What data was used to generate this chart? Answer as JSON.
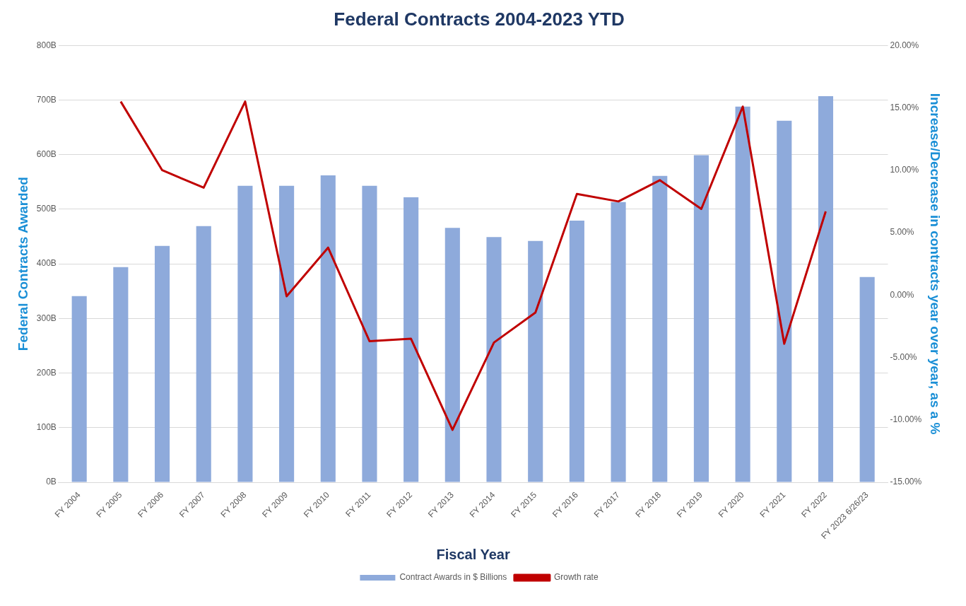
{
  "chart_data": {
    "type": "bar",
    "title": "Federal Contracts 2004-2023 YTD",
    "xlabel": "Fiscal Year",
    "ylabel": "Federal Contracts Awarded",
    "y2label": "Increase/Decrease in contracts year over year, as a %",
    "categories": [
      "FY 2004",
      "FY 2005",
      "FY 2006",
      "FY 2007",
      "FY 2008",
      "FY 2009",
      "FY 2010",
      "FY 2011",
      "FY 2012",
      "FY 2013",
      "FY 2014",
      "FY 2015",
      "FY 2016",
      "FY 2017",
      "FY 2018",
      "FY 2019",
      "FY 2020",
      "FY 2021",
      "FY 2022",
      "FY 2023 6/26/23"
    ],
    "series": [
      {
        "name": "Contract Awards in $ Billions",
        "color": "#8eaadb",
        "values": [
          341,
          394,
          433,
          469,
          543,
          543,
          562,
          543,
          522,
          466,
          449,
          442,
          479,
          513,
          561,
          599,
          688,
          662,
          707,
          376
        ]
      },
      {
        "name": "Growth rate",
        "type": "line",
        "axis": "y2",
        "color": "#c00000",
        "marker": "none",
        "values": [
          null,
          15.5,
          10.0,
          8.6,
          15.5,
          -0.1,
          3.8,
          -3.7,
          -3.5,
          -10.8,
          -3.8,
          -1.4,
          8.1,
          7.5,
          9.2,
          6.9,
          15.1,
          -3.9,
          6.7,
          null
        ]
      }
    ],
    "ylim": [
      0,
      800
    ],
    "yticks": [
      {
        "value": 0,
        "label": "0B"
      },
      {
        "value": 100,
        "label": "100B"
      },
      {
        "value": 200,
        "label": "200B"
      },
      {
        "value": 300,
        "label": "300B"
      },
      {
        "value": 400,
        "label": "400B"
      },
      {
        "value": 500,
        "label": "500B"
      },
      {
        "value": 600,
        "label": "600B"
      },
      {
        "value": 700,
        "label": "700B"
      },
      {
        "value": 800,
        "label": "800B"
      }
    ],
    "y2lim": [
      -15,
      20
    ],
    "y2ticks": [
      {
        "value": -15,
        "label": "-15.00%"
      },
      {
        "value": -10,
        "label": "-10.00%"
      },
      {
        "value": -5,
        "label": "-5.00%"
      },
      {
        "value": 0,
        "label": "0.00%"
      },
      {
        "value": 5,
        "label": "5.00%"
      },
      {
        "value": 10,
        "label": "10.00%"
      },
      {
        "value": 15,
        "label": "15.00%"
      },
      {
        "value": 20,
        "label": "20.00%"
      }
    ],
    "grid": "y",
    "legend": "bottom"
  }
}
